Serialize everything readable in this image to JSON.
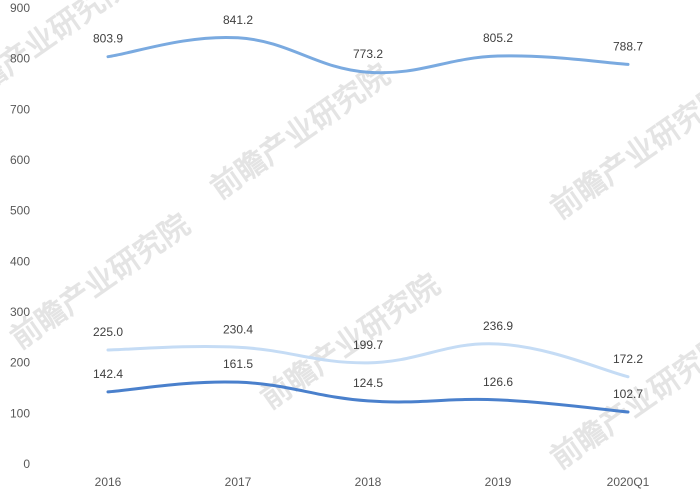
{
  "chart_data": {
    "type": "line",
    "categories": [
      "2016",
      "2017",
      "2018",
      "2019",
      "2020Q1"
    ],
    "series": [
      {
        "values": [
          803.9,
          841.2,
          773.2,
          805.2,
          788.7
        ],
        "color": "#7aaae0"
      },
      {
        "values": [
          225.0,
          230.4,
          199.7,
          236.9,
          172.2
        ],
        "color": "#c5dcf5"
      },
      {
        "values": [
          142.4,
          161.5,
          124.5,
          126.6,
          102.7
        ],
        "color": "#4a80cc"
      }
    ],
    "data_labels": [
      [
        "803.9",
        "841.2",
        "773.2",
        "805.2",
        "788.7"
      ],
      [
        "225.0",
        "230.4",
        "199.7",
        "236.9",
        "172.2"
      ],
      [
        "142.4",
        "161.5",
        "124.5",
        "126.6",
        "102.7"
      ]
    ],
    "yticks": [
      "0",
      "100",
      "200",
      "300",
      "400",
      "500",
      "600",
      "700",
      "800",
      "900"
    ],
    "ylim": [
      0,
      900
    ],
    "grid": false,
    "legend": "none"
  },
  "watermark": {
    "text": "前瞻产业研究院"
  }
}
